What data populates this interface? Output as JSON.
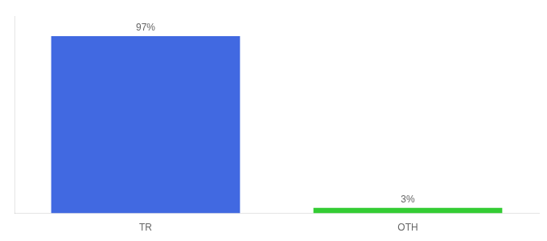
{
  "chart_data": {
    "type": "bar",
    "categories": [
      "TR",
      "OTH"
    ],
    "values": [
      97,
      3
    ],
    "value_labels": [
      "97%",
      "3%"
    ],
    "colors": [
      "#4169e1",
      "#33cc33"
    ],
    "ylim": [
      0,
      108
    ],
    "grid": false,
    "data_labels": true,
    "tick_labels": "x"
  }
}
